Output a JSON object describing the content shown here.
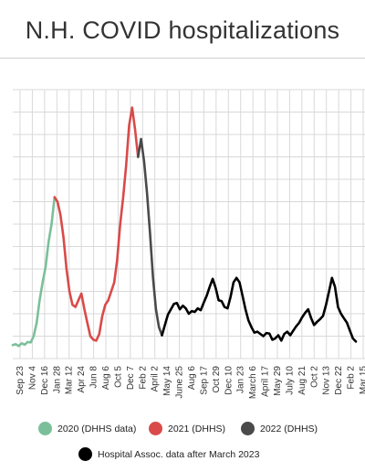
{
  "title": "N.H. COVID hospitalizations",
  "colors": {
    "2020": "#7bbf9a",
    "2021": "#d94a4a",
    "2022": "#4a4a4a",
    "hospital": "#000000",
    "grid": "#d9d9d9"
  },
  "legend": [
    {
      "label": "2020 (DHHS data)",
      "color": "#7bbf9a"
    },
    {
      "label": "2021 (DHHS)",
      "color": "#d94a4a"
    },
    {
      "label": "2022 (DHHS)",
      "color": "#4a4a4a"
    },
    {
      "label": "Hospital Assoc. data after March 2023",
      "color": "#000000"
    }
  ],
  "chart_data": {
    "type": "line",
    "title": "N.H. COVID hospitalizations",
    "xlabel": "",
    "ylabel": "",
    "grid": true,
    "x_ticks": [
      "Sep 23",
      "Nov 4",
      "Dec 16",
      "Jan 28",
      "Mar 12",
      "Apr 24",
      "Jun 8",
      "Aug 6",
      "Oct 5",
      "Dec 7",
      "Feb 2",
      "April 2",
      "May 14",
      "June 25",
      "Aug 6",
      "Sep 17",
      "Oct 29",
      "Dec 10",
      "Jan 23",
      "March 6",
      "April 17",
      "May 29",
      "July 10",
      "Aug 21",
      "Oct 2",
      "Nov 13",
      "Dec 22",
      "Feb 2",
      "Mar 15"
    ],
    "series": [
      {
        "name": "2020 (DHHS data)",
        "color": "#7bbf9a",
        "values": [
          [
            0,
            30
          ],
          [
            1,
            32
          ],
          [
            2,
            28
          ],
          [
            3,
            34
          ],
          [
            4,
            31
          ],
          [
            5,
            37
          ],
          [
            6,
            36
          ],
          [
            7,
            50
          ],
          [
            8,
            80
          ],
          [
            9,
            130
          ],
          [
            10,
            170
          ],
          [
            11,
            205
          ],
          [
            12,
            260
          ],
          [
            13,
            300
          ],
          [
            14,
            360
          ]
        ]
      },
      {
        "name": "2021 (DHHS)",
        "color": "#d94a4a",
        "values": [
          [
            14,
            360
          ],
          [
            15,
            350
          ],
          [
            16,
            320
          ],
          [
            17,
            270
          ],
          [
            18,
            200
          ],
          [
            19,
            150
          ],
          [
            20,
            120
          ],
          [
            21,
            115
          ],
          [
            22,
            130
          ],
          [
            23,
            145
          ],
          [
            24,
            110
          ],
          [
            25,
            80
          ],
          [
            26,
            50
          ],
          [
            27,
            42
          ],
          [
            28,
            40
          ],
          [
            29,
            55
          ],
          [
            30,
            95
          ],
          [
            31,
            120
          ],
          [
            32,
            130
          ],
          [
            33,
            150
          ],
          [
            34,
            170
          ],
          [
            35,
            220
          ],
          [
            36,
            300
          ],
          [
            37,
            360
          ],
          [
            38,
            430
          ],
          [
            39,
            520
          ],
          [
            40,
            560
          ],
          [
            41,
            510
          ],
          [
            42,
            450
          ]
        ]
      },
      {
        "name": "2022 (DHHS)",
        "color": "#4a4a4a",
        "values": [
          [
            42,
            450
          ],
          [
            43,
            490
          ],
          [
            44,
            440
          ],
          [
            45,
            370
          ],
          [
            46,
            280
          ],
          [
            47,
            180
          ],
          [
            48,
            110
          ],
          [
            49,
            70
          ],
          [
            50,
            52
          ]
        ]
      },
      {
        "name": "Hospital Assoc. data after March 2023",
        "color": "#000000",
        "values": [
          [
            50,
            52
          ],
          [
            51,
            75
          ],
          [
            52,
            98
          ],
          [
            53,
            110
          ],
          [
            54,
            122
          ],
          [
            55,
            124
          ],
          [
            56,
            110
          ],
          [
            57,
            118
          ],
          [
            58,
            112
          ],
          [
            59,
            100
          ],
          [
            60,
            106
          ],
          [
            61,
            104
          ],
          [
            62,
            112
          ],
          [
            63,
            108
          ],
          [
            64,
            125
          ],
          [
            65,
            140
          ],
          [
            66,
            160
          ],
          [
            67,
            178
          ],
          [
            68,
            158
          ],
          [
            69,
            130
          ],
          [
            70,
            128
          ],
          [
            71,
            115
          ],
          [
            72,
            112
          ],
          [
            73,
            138
          ],
          [
            74,
            170
          ],
          [
            75,
            180
          ],
          [
            76,
            170
          ],
          [
            77,
            140
          ],
          [
            78,
            110
          ],
          [
            79,
            85
          ],
          [
            80,
            70
          ],
          [
            81,
            58
          ],
          [
            82,
            60
          ],
          [
            83,
            55
          ],
          [
            84,
            50
          ],
          [
            85,
            57
          ],
          [
            86,
            56
          ],
          [
            87,
            42
          ],
          [
            88,
            45
          ],
          [
            89,
            52
          ],
          [
            90,
            40
          ],
          [
            91,
            55
          ],
          [
            92,
            60
          ],
          [
            93,
            52
          ],
          [
            94,
            62
          ],
          [
            95,
            72
          ],
          [
            96,
            80
          ],
          [
            97,
            92
          ],
          [
            98,
            102
          ],
          [
            99,
            110
          ],
          [
            100,
            90
          ],
          [
            101,
            75
          ],
          [
            102,
            82
          ],
          [
            103,
            88
          ],
          [
            104,
            95
          ],
          [
            105,
            120
          ],
          [
            106,
            150
          ],
          [
            107,
            180
          ],
          [
            108,
            160
          ],
          [
            109,
            115
          ],
          [
            110,
            100
          ],
          [
            111,
            90
          ],
          [
            112,
            80
          ],
          [
            113,
            62
          ],
          [
            114,
            45
          ],
          [
            115,
            38
          ]
        ]
      }
    ]
  }
}
